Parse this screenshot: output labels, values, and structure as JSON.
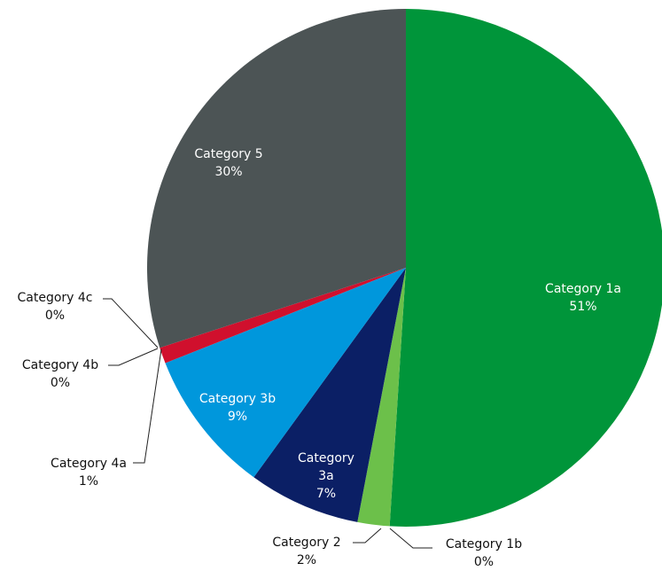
{
  "chart_data": {
    "type": "pie",
    "categories": [
      "Category 1a",
      "Category 1b",
      "Category 2",
      "Category 3a",
      "Category 3b",
      "Category 4a",
      "Category 4b",
      "Category 4c",
      "Category 5"
    ],
    "values": [
      51,
      0,
      2,
      7,
      9,
      1,
      0,
      0,
      30
    ],
    "value_labels": [
      "51%",
      "0%",
      "2%",
      "7%",
      "9%",
      "1%",
      "0%",
      "0%",
      "30%"
    ],
    "colors": [
      "#00953a",
      "#8cc63f",
      "#6cc04a",
      "#0b1f65",
      "#0097dc",
      "#d0102d",
      "#a0102d",
      "#808080",
      "#4c5455"
    ]
  }
}
